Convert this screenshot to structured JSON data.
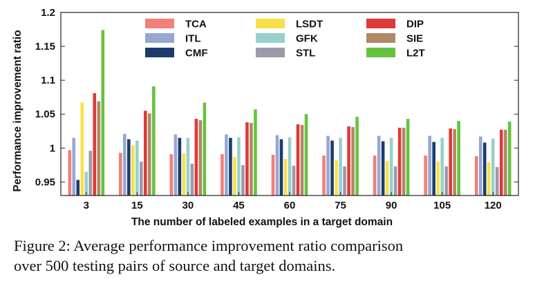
{
  "chart_data": {
    "type": "bar",
    "xlabel": "The number of labeled examples in a target domain",
    "ylabel": "Performance improvement ratio",
    "categories": [
      "3",
      "15",
      "30",
      "45",
      "60",
      "75",
      "90",
      "105",
      "120"
    ],
    "ylim": [
      0.93,
      1.2
    ],
    "yticks": [
      "0.95",
      "1",
      "1.05",
      "1.1",
      "1.15",
      "1.2"
    ],
    "legend_position": "top",
    "grid": false,
    "series": [
      {
        "name": "TCA",
        "color": "#f08078",
        "values": [
          0.997,
          0.993,
          0.991,
          0.991,
          0.99,
          0.989,
          0.989,
          0.989,
          0.988
        ]
      },
      {
        "name": "ITL",
        "color": "#98a6d2",
        "values": [
          1.015,
          1.021,
          1.02,
          1.02,
          1.019,
          1.018,
          1.018,
          1.018,
          1.017
        ]
      },
      {
        "name": "CMF",
        "color": "#1c3c6e",
        "values": [
          0.953,
          1.013,
          1.015,
          1.015,
          1.013,
          1.011,
          1.01,
          1.009,
          1.008
        ]
      },
      {
        "name": "LSDT",
        "color": "#f8e048",
        "values": [
          1.067,
          1.004,
          0.992,
          0.987,
          0.984,
          0.982,
          0.981,
          0.98,
          0.979
        ]
      },
      {
        "name": "GFK",
        "color": "#98d0cc",
        "values": [
          0.965,
          1.011,
          1.015,
          1.016,
          1.016,
          1.015,
          1.015,
          1.015,
          1.014
        ]
      },
      {
        "name": "STL",
        "color": "#9c9aaa",
        "values": [
          0.996,
          0.98,
          0.977,
          0.975,
          0.974,
          0.973,
          0.973,
          0.973,
          0.972
        ]
      },
      {
        "name": "DIP",
        "color": "#de3a38",
        "values": [
          1.081,
          1.055,
          1.043,
          1.038,
          1.035,
          1.032,
          1.03,
          1.029,
          1.027
        ]
      },
      {
        "name": "SIE",
        "color": "#b08866",
        "values": [
          1.069,
          1.051,
          1.041,
          1.037,
          1.034,
          1.031,
          1.03,
          1.028,
          1.027
        ]
      },
      {
        "name": "L2T",
        "color": "#66c23e",
        "values": [
          1.174,
          1.091,
          1.067,
          1.057,
          1.05,
          1.046,
          1.043,
          1.04,
          1.039
        ]
      }
    ]
  },
  "caption": {
    "line1": "Figure 2:  Average performance improvement ratio comparison",
    "line2": "over 500 testing pairs of source and target domains."
  }
}
